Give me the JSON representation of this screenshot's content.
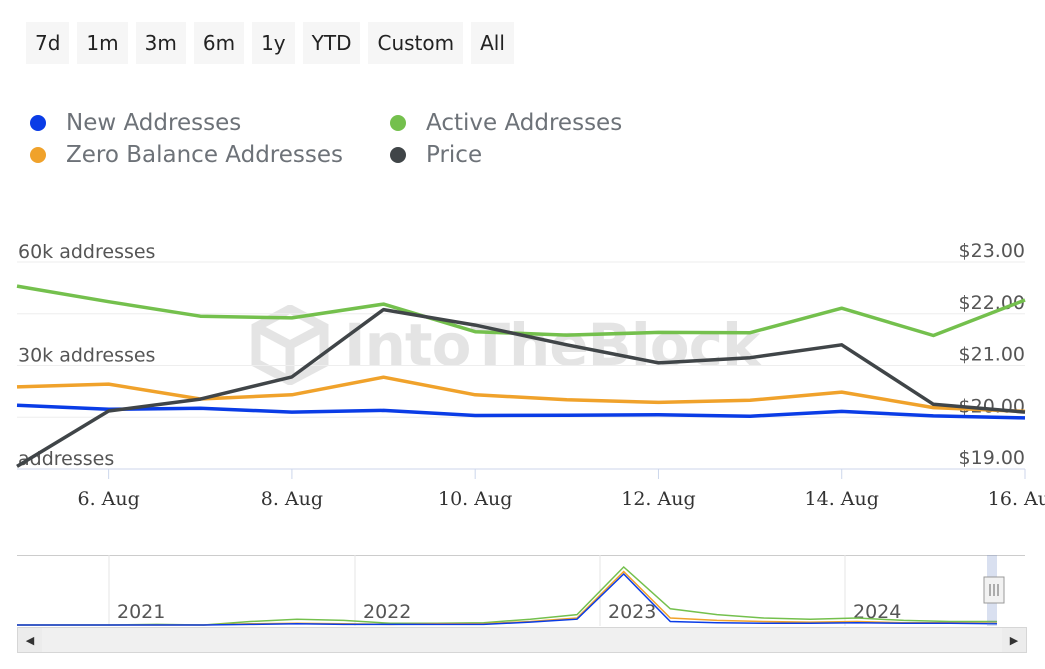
{
  "range_buttons": [
    "7d",
    "1m",
    "3m",
    "6m",
    "1y",
    "YTD",
    "Custom",
    "All"
  ],
  "legend": [
    {
      "label": "New Addresses",
      "color": "#0a3ce6"
    },
    {
      "label": "Active Addresses",
      "color": "#74c04d"
    },
    {
      "label": "Zero Balance Addresses",
      "color": "#f0a22b"
    },
    {
      "label": "Price",
      "color": "#404548"
    }
  ],
  "watermark": "IntoTheBlock",
  "chart_data": {
    "type": "line",
    "x": [
      "5 Aug",
      "6 Aug",
      "7 Aug",
      "8 Aug",
      "9 Aug",
      "10 Aug",
      "11 Aug",
      "12 Aug",
      "13 Aug",
      "14 Aug",
      "15 Aug",
      "16 Aug"
    ],
    "x_tick_labels": [
      "6. Aug",
      "8. Aug",
      "10. Aug",
      "12. Aug",
      "14. Aug",
      "16. Aug"
    ],
    "left_axis": {
      "ticks": [
        "addresses",
        "30k addresses",
        "60k addresses"
      ],
      "ylim": [
        0,
        60000
      ]
    },
    "right_axis": {
      "ticks": [
        "$19.00",
        "$20.00",
        "$21.00",
        "$22.00",
        "$23.00"
      ],
      "ylim": [
        19,
        23
      ]
    },
    "series": [
      {
        "name": "Active Addresses",
        "axis": "left",
        "color": "#74c04d",
        "values": [
          53000,
          48500,
          44300,
          43800,
          47800,
          39800,
          38800,
          39600,
          39500,
          46600,
          38700,
          49000
        ]
      },
      {
        "name": "Zero Balance Addresses",
        "axis": "left",
        "color": "#f0a22b",
        "values": [
          23800,
          24600,
          20300,
          21500,
          26600,
          21500,
          20100,
          19300,
          19900,
          22300,
          17800,
          16700
        ]
      },
      {
        "name": "New Addresses",
        "axis": "left",
        "color": "#0a3ce6",
        "values": [
          18500,
          17300,
          17600,
          16500,
          17000,
          15500,
          15600,
          15700,
          15300,
          16700,
          15400,
          14800
        ]
      },
      {
        "name": "Price",
        "axis": "right",
        "color": "#404548",
        "values": [
          19.05,
          20.12,
          20.35,
          20.78,
          22.08,
          21.78,
          21.4,
          21.05,
          21.15,
          21.4,
          20.25,
          20.1
        ]
      }
    ],
    "navigator": {
      "year_labels": [
        "2021",
        "2022",
        "2023",
        "2024"
      ],
      "active": [
        0.0,
        0.0,
        0.0,
        0.01,
        0.0,
        0.06,
        0.1,
        0.08,
        0.03,
        0.03,
        0.04,
        0.1,
        0.18,
        1.0,
        0.28,
        0.18,
        0.12,
        0.1,
        0.12,
        0.08,
        0.06,
        0.06
      ],
      "zero_balance": [
        0.0,
        0.0,
        0.0,
        0.0,
        0.0,
        0.02,
        0.03,
        0.02,
        0.01,
        0.02,
        0.02,
        0.06,
        0.12,
        0.92,
        0.12,
        0.08,
        0.06,
        0.05,
        0.06,
        0.04,
        0.04,
        0.03
      ],
      "new": [
        0.0,
        0.0,
        0.0,
        0.0,
        0.0,
        0.01,
        0.02,
        0.01,
        0.01,
        0.01,
        0.01,
        0.05,
        0.1,
        0.88,
        0.06,
        0.04,
        0.03,
        0.03,
        0.04,
        0.03,
        0.03,
        0.02
      ]
    }
  }
}
